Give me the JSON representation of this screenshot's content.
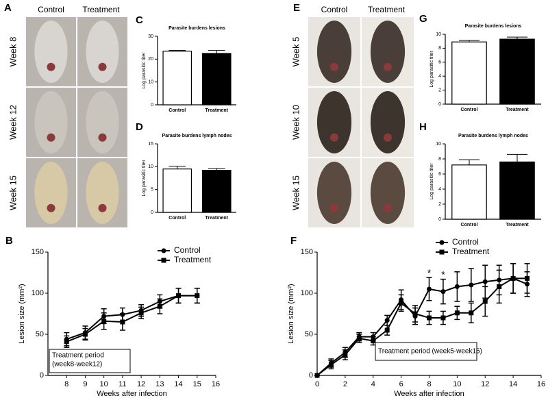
{
  "photos": [
    {
      "panel": "A",
      "columns": [
        "Control",
        "Treatment"
      ],
      "rows": [
        "Week 8",
        "Week 12",
        "Week 15"
      ]
    },
    {
      "panel": "E",
      "columns": [
        "Control",
        "Treatment"
      ],
      "rows": [
        "Week 5",
        "Week 10",
        "Week 15"
      ]
    }
  ],
  "chart_data": [
    {
      "type": "bar",
      "panel": "C",
      "title": "Parasite burdens lesions",
      "y_label": "Log parasitic titer",
      "categories": [
        "Control",
        "Treatment"
      ],
      "values": [
        23.5,
        22.5
      ],
      "errors": [
        0.3,
        1.3
      ],
      "colors": [
        "#ffffff",
        "#000000"
      ],
      "ylim": [
        0,
        30
      ],
      "yticks": [
        0,
        10,
        20,
        30
      ]
    },
    {
      "type": "bar",
      "panel": "D",
      "title": "Parasite burdens lymph nodes",
      "y_label": "Log parasitic titer",
      "categories": [
        "Control",
        "Treatment"
      ],
      "values": [
        9.5,
        9.2
      ],
      "errors": [
        0.6,
        0.4
      ],
      "colors": [
        "#ffffff",
        "#000000"
      ],
      "ylim": [
        0,
        15
      ],
      "yticks": [
        0,
        5,
        10,
        15
      ]
    },
    {
      "type": "bar",
      "panel": "G",
      "title": "Parasite burdens lesions",
      "y_label": "Log parasitic titer",
      "categories": [
        "Control",
        "Treatment"
      ],
      "values": [
        8.9,
        9.3
      ],
      "errors": [
        0.2,
        0.3
      ],
      "colors": [
        "#ffffff",
        "#000000"
      ],
      "ylim": [
        0,
        10
      ],
      "yticks": [
        0,
        2,
        4,
        6,
        8,
        10
      ]
    },
    {
      "type": "bar",
      "panel": "H",
      "title": "Parasite burdens lymph nodes",
      "y_label": "Log parasitic titer",
      "categories": [
        "Control",
        "Treatment"
      ],
      "values": [
        7.2,
        7.6
      ],
      "errors": [
        0.7,
        1.0
      ],
      "colors": [
        "#ffffff",
        "#000000"
      ],
      "ylim": [
        0,
        10
      ],
      "yticks": [
        0,
        2,
        4,
        6,
        8,
        10
      ]
    },
    {
      "type": "line",
      "panel": "B",
      "x_label": "Weeks after infection",
      "y_label": "Lesion size (mm²)",
      "x": [
        8,
        9,
        10,
        11,
        12,
        13,
        14,
        15
      ],
      "series": [
        {
          "name": "Control",
          "color": "#000000",
          "marker": "circle",
          "values": [
            44,
            52,
            72,
            74,
            79,
            90,
            97,
            97
          ],
          "errors": [
            8,
            8,
            9,
            8,
            7,
            8,
            9,
            9
          ]
        },
        {
          "name": "Treatment",
          "color": "#000000",
          "marker": "square",
          "values": [
            41,
            50,
            66,
            65,
            76,
            84,
            97,
            97
          ],
          "errors": [
            7,
            7,
            10,
            10,
            7,
            9,
            9,
            9
          ]
        }
      ],
      "xlim": [
        7,
        16
      ],
      "xticks": [
        8,
        9,
        10,
        11,
        12,
        13,
        14,
        15,
        16
      ],
      "ylim": [
        0,
        150
      ],
      "yticks": [
        0,
        50,
        100,
        150
      ],
      "annotation": [
        "Treatment period",
        "(week8-week12)"
      ]
    },
    {
      "type": "line",
      "panel": "F",
      "x_label": "Weeks after infection",
      "y_label": "Lesion size (mm²)",
      "x": [
        0,
        1,
        2,
        3,
        4,
        5,
        6,
        7,
        8,
        9,
        10,
        11,
        12,
        13,
        14,
        15
      ],
      "series": [
        {
          "name": "Control",
          "color": "#000000",
          "marker": "circle",
          "values": [
            0,
            15,
            28,
            47,
            47,
            67,
            92,
            72,
            105,
            102,
            108,
            110,
            114,
            116,
            118,
            111
          ],
          "errors": [
            0,
            5,
            6,
            5,
            5,
            6,
            12,
            10,
            14,
            15,
            18,
            20,
            20,
            18,
            18,
            15
          ]
        },
        {
          "name": "Treatment",
          "color": "#000000",
          "marker": "square",
          "values": [
            0,
            13,
            25,
            45,
            42,
            55,
            88,
            75,
            70,
            70,
            76,
            76,
            90,
            108,
            118,
            118
          ],
          "errors": [
            0,
            5,
            6,
            5,
            5,
            6,
            10,
            10,
            8,
            8,
            8,
            12,
            18,
            20,
            18,
            18
          ]
        }
      ],
      "xlim": [
        0,
        16
      ],
      "xticks": [
        0,
        2,
        4,
        6,
        8,
        10,
        12,
        14,
        16
      ],
      "ylim": [
        0,
        150
      ],
      "yticks": [
        0,
        50,
        100,
        150
      ],
      "annotation": [
        "Treatment period (week5-week15)"
      ],
      "significance": [
        {
          "x": 8,
          "text": "*"
        },
        {
          "x": 9,
          "text": "*"
        }
      ]
    }
  ]
}
